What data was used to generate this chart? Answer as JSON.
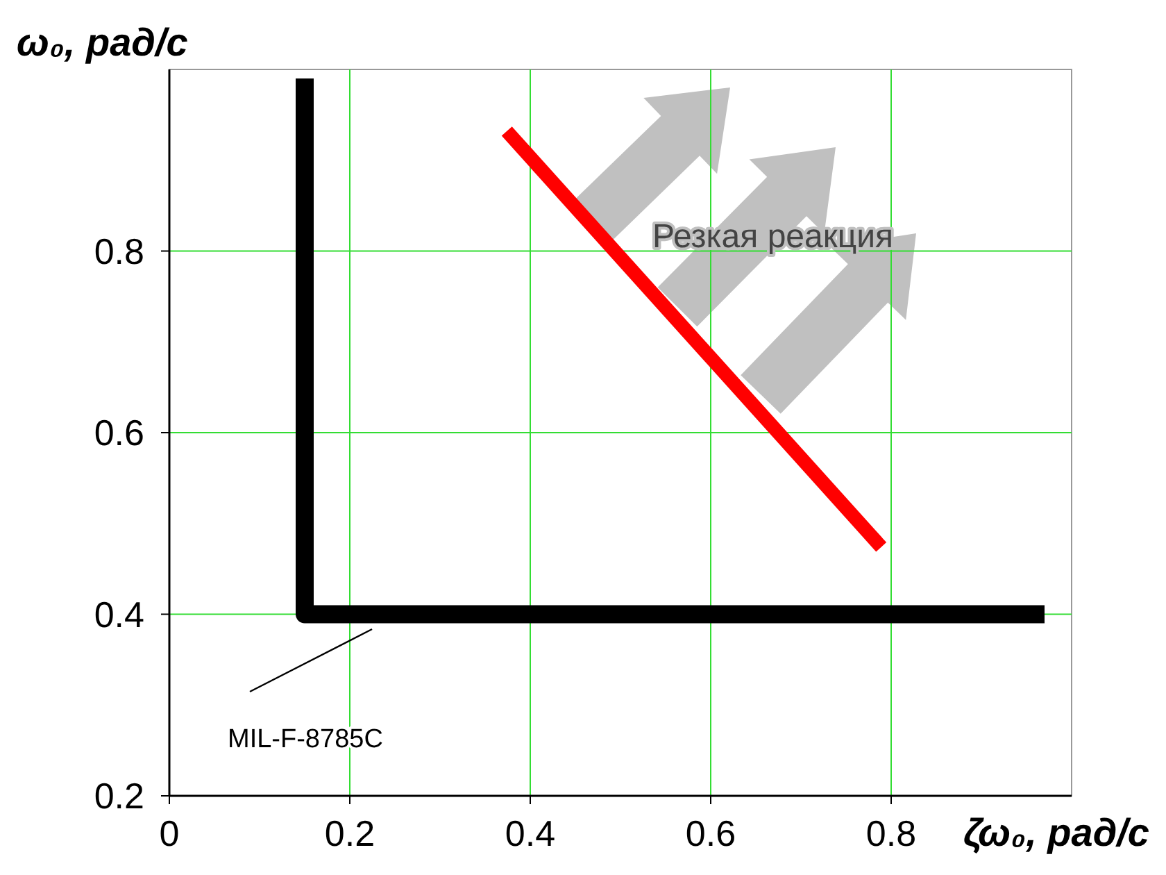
{
  "chart_data": {
    "type": "line",
    "xlabel": "ζω₀, рад/с",
    "ylabel": "ω₀, рад/с",
    "xlim": [
      0,
      1
    ],
    "ylim": [
      0.2,
      1
    ],
    "xticks": [
      0,
      0.2,
      0.4,
      0.6,
      0.8
    ],
    "yticks": [
      0.2,
      0.4,
      0.6,
      0.8
    ],
    "grid": true,
    "marker": "none",
    "line_style": "solid",
    "series": [
      {
        "color": "#000000",
        "x": [
          0.15,
          0.15,
          0.97
        ],
        "values": [
          0.99,
          0.4,
          0.4
        ]
      },
      {
        "color": "#ff0000",
        "x": [
          0.374,
          0.789
        ],
        "values": [
          0.932,
          0.474
        ]
      }
    ],
    "annotations": [
      "Резкая реакция",
      "MIL-F-8785C"
    ]
  }
}
